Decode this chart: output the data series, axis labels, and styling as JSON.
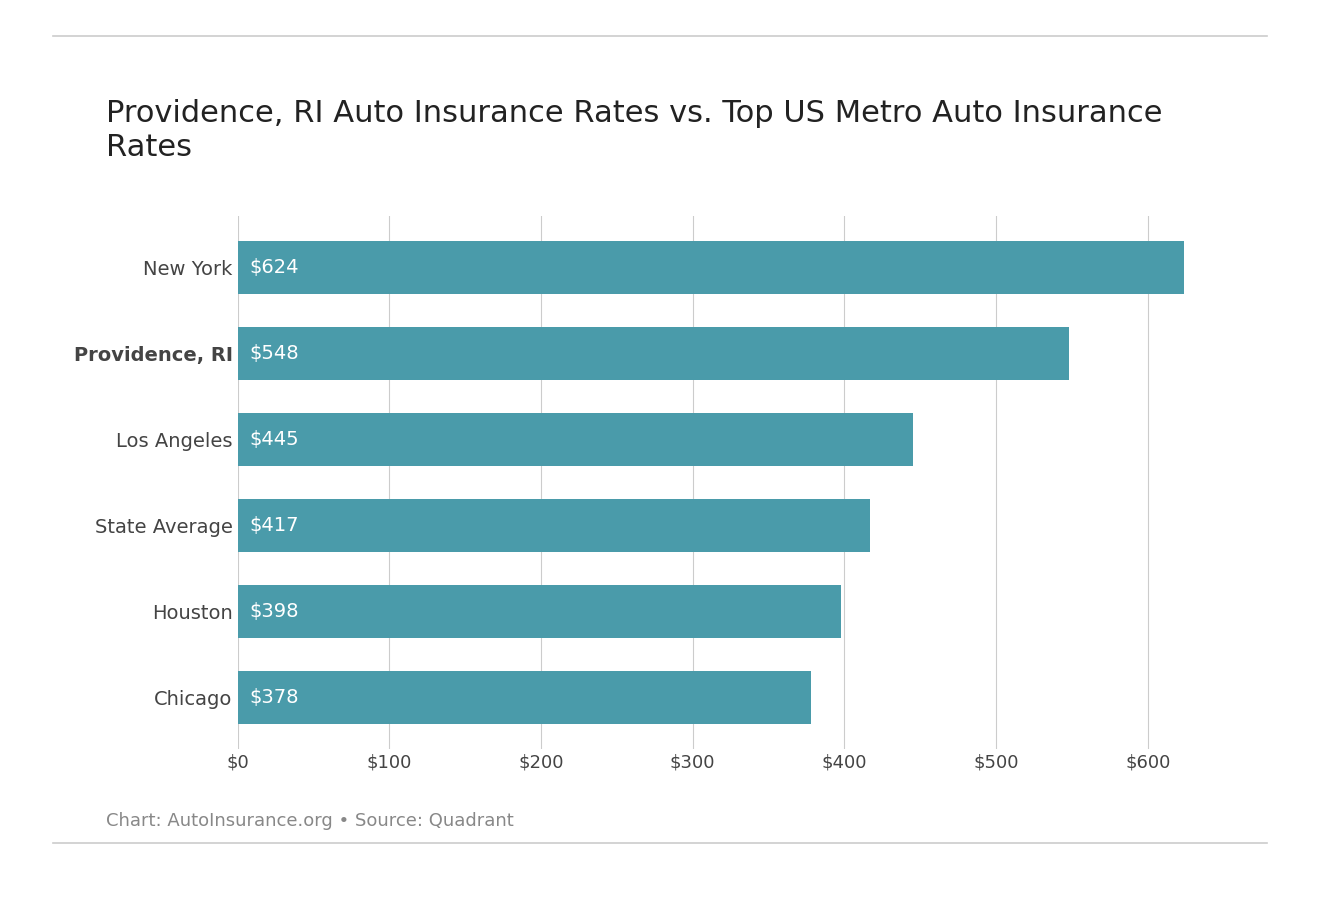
{
  "title": "Providence, RI Auto Insurance Rates vs. Top US Metro Auto Insurance\nRates",
  "categories": [
    "New York",
    "Providence, RI",
    "Los Angeles",
    "State Average",
    "Houston",
    "Chicago"
  ],
  "values": [
    624,
    548,
    445,
    417,
    398,
    378
  ],
  "labels": [
    "$624",
    "$548",
    "$445",
    "$417",
    "$398",
    "$378"
  ],
  "bar_color": "#4a9baa",
  "bold_category": "Providence, RI",
  "x_tick_labels": [
    "$0",
    "$100",
    "$200",
    "$300",
    "$400",
    "$500",
    "$600"
  ],
  "x_tick_values": [
    0,
    100,
    200,
    300,
    400,
    500,
    600
  ],
  "xlim": [
    0,
    670
  ],
  "caption": "Chart: AutoInsurance.org • Source: Quadrant",
  "background_color": "#ffffff",
  "bar_text_color": "#ffffff",
  "title_color": "#222222",
  "caption_color": "#888888",
  "axis_text_color": "#444444",
  "title_fontsize": 22,
  "bar_label_fontsize": 14,
  "tick_fontsize": 13,
  "caption_fontsize": 13,
  "bar_height": 0.62
}
